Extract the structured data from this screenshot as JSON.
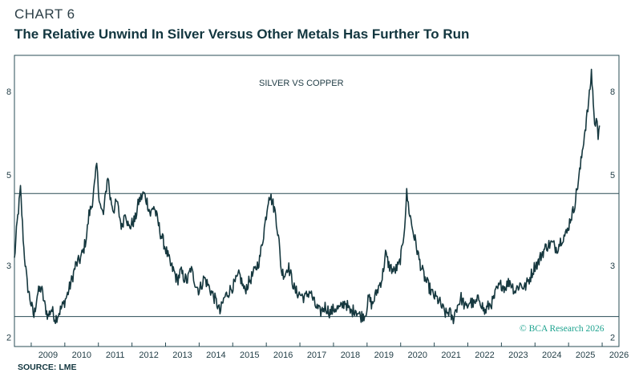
{
  "header": {
    "chart_number": "CHART 6",
    "title": "The Relative Unwind In Silver Versus Other Metals Has Further To Run"
  },
  "footer": {
    "source": "SOURCE: LME",
    "copyright": "© BCA Research 2026"
  },
  "colors": {
    "line": "#16383f",
    "frame": "#2a4c55",
    "copyright": "#1ea38f"
  },
  "chart_data": {
    "type": "line",
    "title": "The Relative Unwind In Silver Versus Other Metals Has Further To Run",
    "annotation": "SILVER VS COPPER",
    "y_scale": "log",
    "ylim": [
      1.9,
      9.8
    ],
    "y_ticks": [
      {
        "value": 2,
        "label": "2"
      },
      {
        "value": 3,
        "label": "3"
      },
      {
        "value": 5,
        "label": "5"
      },
      {
        "value": 8,
        "label": "8"
      }
    ],
    "xlim": [
      2008.5,
      2026.5
    ],
    "x_ticks": [
      "2009",
      "2010",
      "2011",
      "2012",
      "2013",
      "2014",
      "2015",
      "2016",
      "2017",
      "2018",
      "2019",
      "2020",
      "2021",
      "2022",
      "2023",
      "2024",
      "2025",
      "2026"
    ],
    "reference_lines": [
      4.5,
      2.25
    ],
    "series": [
      {
        "name": "Silver vs Copper",
        "points": [
          [
            2008.5,
            3.1
          ],
          [
            2008.58,
            3.8
          ],
          [
            2008.68,
            4.6
          ],
          [
            2008.78,
            3.3
          ],
          [
            2008.88,
            2.7
          ],
          [
            2008.98,
            2.45
          ],
          [
            2009.08,
            2.25
          ],
          [
            2009.18,
            2.55
          ],
          [
            2009.3,
            2.65
          ],
          [
            2009.4,
            2.4
          ],
          [
            2009.5,
            2.25
          ],
          [
            2009.6,
            2.35
          ],
          [
            2009.72,
            2.22
          ],
          [
            2009.85,
            2.32
          ],
          [
            2009.95,
            2.4
          ],
          [
            2010.08,
            2.55
          ],
          [
            2010.2,
            2.75
          ],
          [
            2010.32,
            3.0
          ],
          [
            2010.45,
            3.1
          ],
          [
            2010.55,
            3.25
          ],
          [
            2010.65,
            3.55
          ],
          [
            2010.72,
            4.0
          ],
          [
            2010.8,
            4.2
          ],
          [
            2010.9,
            4.8
          ],
          [
            2010.95,
            5.3
          ],
          [
            2011.0,
            4.6
          ],
          [
            2011.08,
            4.1
          ],
          [
            2011.15,
            4.0
          ],
          [
            2011.22,
            4.5
          ],
          [
            2011.28,
            5.0
          ],
          [
            2011.35,
            4.4
          ],
          [
            2011.45,
            4.1
          ],
          [
            2011.55,
            4.3
          ],
          [
            2011.62,
            4.0
          ],
          [
            2011.7,
            3.7
          ],
          [
            2011.8,
            4.1
          ],
          [
            2011.9,
            3.7
          ],
          [
            2012.0,
            3.8
          ],
          [
            2012.1,
            3.9
          ],
          [
            2012.2,
            4.3
          ],
          [
            2012.35,
            4.5
          ],
          [
            2012.45,
            4.3
          ],
          [
            2012.55,
            4.0
          ],
          [
            2012.65,
            4.2
          ],
          [
            2012.75,
            3.9
          ],
          [
            2012.85,
            3.6
          ],
          [
            2012.95,
            3.4
          ],
          [
            2013.05,
            3.2
          ],
          [
            2013.15,
            3.0
          ],
          [
            2013.25,
            2.9
          ],
          [
            2013.35,
            2.75
          ],
          [
            2013.45,
            2.9
          ],
          [
            2013.55,
            2.8
          ],
          [
            2013.65,
            2.75
          ],
          [
            2013.75,
            2.95
          ],
          [
            2013.9,
            2.7
          ],
          [
            2014.0,
            2.6
          ],
          [
            2014.15,
            2.8
          ],
          [
            2014.3,
            2.65
          ],
          [
            2014.45,
            2.5
          ],
          [
            2014.55,
            2.4
          ],
          [
            2014.62,
            2.3
          ],
          [
            2014.75,
            2.5
          ],
          [
            2014.9,
            2.6
          ],
          [
            2015.05,
            2.7
          ],
          [
            2015.2,
            2.85
          ],
          [
            2015.35,
            2.6
          ],
          [
            2015.5,
            2.75
          ],
          [
            2015.65,
            2.9
          ],
          [
            2015.8,
            3.1
          ],
          [
            2015.9,
            3.5
          ],
          [
            2016.0,
            4.0
          ],
          [
            2016.08,
            4.5
          ],
          [
            2016.18,
            4.3
          ],
          [
            2016.28,
            4.0
          ],
          [
            2016.38,
            3.4
          ],
          [
            2016.45,
            2.9
          ],
          [
            2016.55,
            2.85
          ],
          [
            2016.65,
            3.0
          ],
          [
            2016.75,
            2.8
          ],
          [
            2016.85,
            2.6
          ],
          [
            2017.0,
            2.55
          ],
          [
            2017.15,
            2.5
          ],
          [
            2017.3,
            2.6
          ],
          [
            2017.45,
            2.4
          ],
          [
            2017.6,
            2.3
          ],
          [
            2017.75,
            2.38
          ],
          [
            2017.9,
            2.3
          ],
          [
            2018.05,
            2.36
          ],
          [
            2018.2,
            2.35
          ],
          [
            2018.35,
            2.45
          ],
          [
            2018.5,
            2.3
          ],
          [
            2018.65,
            2.35
          ],
          [
            2018.8,
            2.25
          ],
          [
            2018.95,
            2.28
          ],
          [
            2019.05,
            2.5
          ],
          [
            2019.15,
            2.4
          ],
          [
            2019.3,
            2.6
          ],
          [
            2019.45,
            2.8
          ],
          [
            2019.55,
            3.2
          ],
          [
            2019.65,
            3.0
          ],
          [
            2019.8,
            2.9
          ],
          [
            2019.95,
            3.0
          ],
          [
            2020.05,
            3.3
          ],
          [
            2020.12,
            3.8
          ],
          [
            2020.18,
            4.5
          ],
          [
            2020.25,
            4.1
          ],
          [
            2020.35,
            3.7
          ],
          [
            2020.45,
            3.4
          ],
          [
            2020.55,
            3.1
          ],
          [
            2020.65,
            2.9
          ],
          [
            2020.75,
            2.75
          ],
          [
            2020.85,
            2.65
          ],
          [
            2020.95,
            2.55
          ],
          [
            2021.05,
            2.5
          ],
          [
            2021.15,
            2.45
          ],
          [
            2021.25,
            2.35
          ],
          [
            2021.35,
            2.28
          ],
          [
            2021.45,
            2.32
          ],
          [
            2021.55,
            2.2
          ],
          [
            2021.65,
            2.35
          ],
          [
            2021.8,
            2.5
          ],
          [
            2021.95,
            2.35
          ],
          [
            2022.05,
            2.45
          ],
          [
            2022.2,
            2.4
          ],
          [
            2022.35,
            2.5
          ],
          [
            2022.5,
            2.3
          ],
          [
            2022.6,
            2.38
          ],
          [
            2022.75,
            2.45
          ],
          [
            2022.85,
            2.6
          ],
          [
            2023.0,
            2.7
          ],
          [
            2023.1,
            2.65
          ],
          [
            2023.25,
            2.75
          ],
          [
            2023.4,
            2.6
          ],
          [
            2023.55,
            2.7
          ],
          [
            2023.7,
            2.65
          ],
          [
            2023.85,
            2.8
          ],
          [
            2024.0,
            3.0
          ],
          [
            2024.1,
            3.05
          ],
          [
            2024.2,
            3.2
          ],
          [
            2024.35,
            3.35
          ],
          [
            2024.5,
            3.4
          ],
          [
            2024.65,
            3.3
          ],
          [
            2024.8,
            3.5
          ],
          [
            2024.95,
            3.6
          ],
          [
            2025.05,
            3.9
          ],
          [
            2025.15,
            4.1
          ],
          [
            2025.25,
            4.6
          ],
          [
            2025.35,
            5.2
          ],
          [
            2025.45,
            6.1
          ],
          [
            2025.55,
            7.0
          ],
          [
            2025.62,
            7.8
          ],
          [
            2025.68,
            8.9
          ],
          [
            2025.72,
            8.0
          ],
          [
            2025.75,
            7.1
          ],
          [
            2025.8,
            6.5
          ],
          [
            2025.85,
            6.9
          ],
          [
            2025.88,
            6.3
          ],
          [
            2025.92,
            6.6
          ]
        ]
      }
    ]
  }
}
